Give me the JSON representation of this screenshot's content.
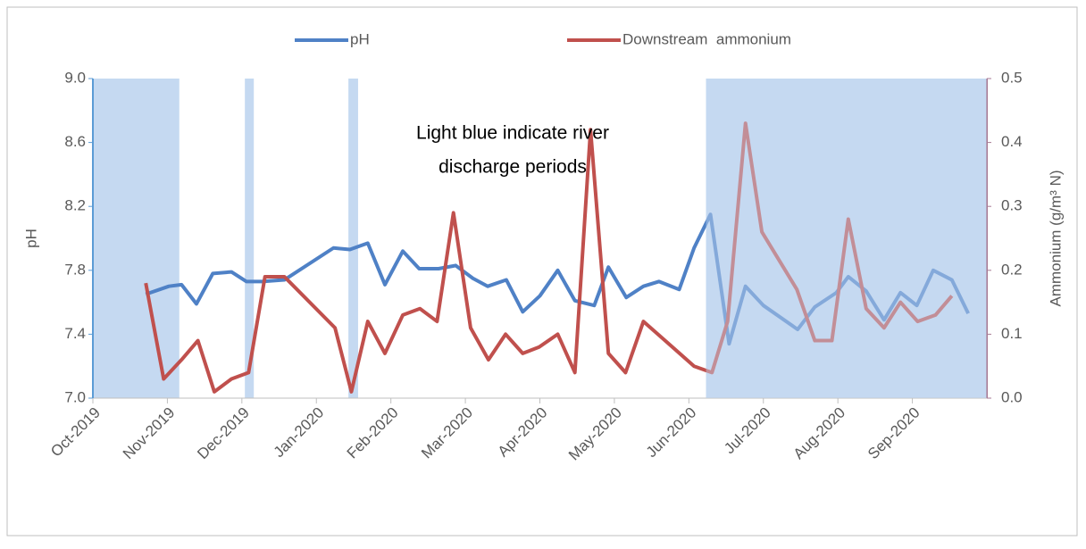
{
  "chart_data": {
    "type": "line",
    "annotation": [
      "Light blue indicate river",
      "discharge periods"
    ],
    "ylabel": "pH",
    "y2label": "Ammonium (g/m³ N)",
    "xlim": [
      0,
      12
    ],
    "xticks": [
      {
        "value": 0,
        "label": "Oct-2019"
      },
      {
        "value": 1,
        "label": "Nov-2019"
      },
      {
        "value": 2,
        "label": "Dec-2019"
      },
      {
        "value": 3,
        "label": "Jan-2020"
      },
      {
        "value": 4,
        "label": "Feb-2020"
      },
      {
        "value": 5,
        "label": "Mar-2020"
      },
      {
        "value": 6,
        "label": "Apr-2020"
      },
      {
        "value": 7,
        "label": "May-2020"
      },
      {
        "value": 8,
        "label": "Jun-2020"
      },
      {
        "value": 9,
        "label": "Jul-2020"
      },
      {
        "value": 10,
        "label": "Aug-2020"
      },
      {
        "value": 11,
        "label": "Sep-2020"
      }
    ],
    "ylim": [
      7.0,
      9.0
    ],
    "yticks": [
      {
        "value": 7.0,
        "label": "7.0"
      },
      7.4,
      7.8,
      8.2,
      8.6,
      {
        "value": 9.0,
        "label": "9.0"
      }
    ],
    "y2lim": [
      0,
      0.5
    ],
    "y2ticks": [
      {
        "value": 0,
        "label": "0.0"
      },
      0.1,
      0.2,
      0.3,
      0.4,
      0.5
    ],
    "shaded_periods": [
      [
        0,
        1.16
      ],
      [
        2.04,
        2.16
      ],
      [
        3.43,
        3.56
      ],
      [
        8.23,
        12
      ]
    ],
    "shade_color": "#c5d9f1",
    "legend": "top",
    "series": [
      {
        "name": "pH",
        "color": "#4f81c6",
        "x": [
          0.71,
          1.02,
          1.19,
          1.39,
          1.61,
          1.86,
          2.06,
          2.27,
          2.57,
          3.23,
          3.45,
          3.69,
          3.92,
          4.16,
          4.38,
          4.64,
          4.87,
          5.1,
          5.3,
          5.55,
          5.77,
          6.0,
          6.24,
          6.47,
          6.73,
          6.92,
          7.16,
          7.39,
          7.6,
          7.87,
          8.07,
          8.29,
          8.54,
          8.76,
          9.0,
          9.46,
          9.69,
          9.98,
          10.14,
          10.38,
          10.62,
          10.84,
          11.06,
          11.28,
          11.53,
          11.75
        ],
        "values": [
          7.65,
          7.7,
          7.71,
          7.59,
          7.78,
          7.79,
          7.73,
          7.73,
          7.74,
          7.94,
          7.93,
          7.97,
          7.71,
          7.92,
          7.81,
          7.81,
          7.83,
          7.75,
          7.7,
          7.74,
          7.54,
          7.64,
          7.8,
          7.61,
          7.58,
          7.82,
          7.63,
          7.7,
          7.73,
          7.68,
          7.94,
          8.15,
          7.34,
          7.7,
          7.58,
          7.43,
          7.57,
          7.66,
          7.76,
          7.67,
          7.49,
          7.66,
          7.58,
          7.8,
          7.74,
          7.53
        ]
      },
      {
        "name": "Downstream  ammonium",
        "color": "#c0504d",
        "axis": "y2",
        "x": [
          0.71,
          0.95,
          1.19,
          1.41,
          1.63,
          1.86,
          2.09,
          2.31,
          2.57,
          3.25,
          3.47,
          3.69,
          3.92,
          4.16,
          4.39,
          4.62,
          4.84,
          5.07,
          5.31,
          5.54,
          5.77,
          5.99,
          6.24,
          6.47,
          6.68,
          6.92,
          7.15,
          7.39,
          8.07,
          8.31,
          8.52,
          8.76,
          8.98,
          9.45,
          9.69,
          9.92,
          10.14,
          10.38,
          10.62,
          10.84,
          11.07,
          11.31,
          11.53
        ],
        "values": [
          0.18,
          0.03,
          0.06,
          0.09,
          0.01,
          0.03,
          0.04,
          0.19,
          0.19,
          0.11,
          0.01,
          0.12,
          0.07,
          0.13,
          0.14,
          0.12,
          0.29,
          0.11,
          0.06,
          0.1,
          0.07,
          0.08,
          0.1,
          0.04,
          0.42,
          0.07,
          0.04,
          0.12,
          0.05,
          0.04,
          0.12,
          0.43,
          0.26,
          0.17,
          0.09,
          0.09,
          0.28,
          0.14,
          0.11,
          0.15,
          0.12,
          0.13,
          0.16
        ]
      }
    ]
  }
}
